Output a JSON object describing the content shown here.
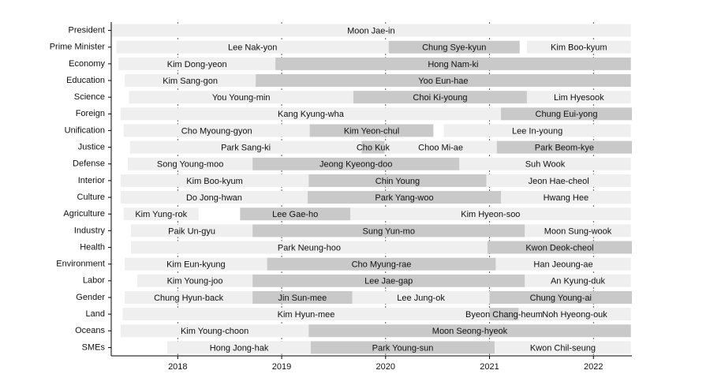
{
  "chart_data": {
    "type": "timeline",
    "colors": [
      "#efefef",
      "#c9c9c9"
    ],
    "xlim": [
      2017.36,
      2022.37
    ],
    "xticks": [
      2018,
      2019,
      2020,
      2021,
      2022
    ],
    "grid": true,
    "rows": [
      {
        "category": "President",
        "segments": [
          {
            "name": "Moon Jae-in",
            "start": 2017.36,
            "end": 2022.36
          }
        ]
      },
      {
        "category": "Prime Minister",
        "segments": [
          {
            "name": "Lee Nak-yon",
            "start": 2017.41,
            "end": 2020.03
          },
          {
            "name": "Chung Sye-kyun",
            "start": 2020.03,
            "end": 2021.29
          },
          {
            "name": "Kim Boo-kyum",
            "start": 2021.36,
            "end": 2022.36
          }
        ]
      },
      {
        "category": "Economy",
        "segments": [
          {
            "name": "Kim Dong-yeon",
            "start": 2017.43,
            "end": 2018.94
          },
          {
            "name": "Hong Nam-ki",
            "start": 2018.94,
            "end": 2022.36
          }
        ]
      },
      {
        "category": "Education",
        "segments": [
          {
            "name": "Kim Sang-gon",
            "start": 2017.49,
            "end": 2018.75
          },
          {
            "name": "Yoo Eun-hae",
            "start": 2018.75,
            "end": 2022.36
          }
        ]
      },
      {
        "category": "Science",
        "segments": [
          {
            "name": "You Young-min",
            "start": 2017.53,
            "end": 2019.69
          },
          {
            "name": "Choi Ki-young",
            "start": 2019.69,
            "end": 2021.36
          },
          {
            "name": "Lim Hyesook",
            "start": 2021.36,
            "end": 2022.36
          }
        ]
      },
      {
        "category": "Foreign",
        "segments": [
          {
            "name": "Kang Kyung-wha",
            "start": 2017.45,
            "end": 2021.11
          },
          {
            "name": "Chung Eui-yong",
            "start": 2021.11,
            "end": 2022.37
          }
        ]
      },
      {
        "category": "Unification",
        "segments": [
          {
            "name": "Cho Myoung-gyon",
            "start": 2017.48,
            "end": 2019.27
          },
          {
            "name": "Kim Yeon-chul",
            "start": 2019.27,
            "end": 2020.46
          },
          {
            "name": "Lee In-young",
            "start": 2020.56,
            "end": 2022.36
          }
        ]
      },
      {
        "category": "Justice",
        "segments": [
          {
            "name": "Park Sang-ki",
            "start": 2017.54,
            "end": 2019.77
          },
          {
            "name": "Cho Kuk",
            "start": 2019.77,
            "end": 2019.99
          },
          {
            "name": "Choo Mi-ae",
            "start": 2019.99,
            "end": 2021.07
          },
          {
            "name": "Park Beom-kye",
            "start": 2021.07,
            "end": 2022.37
          }
        ]
      },
      {
        "category": "Defense",
        "segments": [
          {
            "name": "Song Young-moo",
            "start": 2017.52,
            "end": 2018.72
          },
          {
            "name": "Jeong Kyeong-doo",
            "start": 2018.72,
            "end": 2020.71
          },
          {
            "name": "Suh Wook",
            "start": 2020.71,
            "end": 2022.36
          }
        ]
      },
      {
        "category": "Interior",
        "segments": [
          {
            "name": "Kim Boo-kyum",
            "start": 2017.45,
            "end": 2019.26
          },
          {
            "name": "Chin Young",
            "start": 2019.26,
            "end": 2020.97
          },
          {
            "name": "Jeon Hae-cheol",
            "start": 2020.97,
            "end": 2022.36
          }
        ]
      },
      {
        "category": "Culture",
        "segments": [
          {
            "name": "Do Jong-hwan",
            "start": 2017.45,
            "end": 2019.25
          },
          {
            "name": "Park Yang-woo",
            "start": 2019.25,
            "end": 2021.11
          },
          {
            "name": "Hwang Hee",
            "start": 2021.11,
            "end": 2022.36
          }
        ]
      },
      {
        "category": "Agriculture",
        "segments": [
          {
            "name": "Kim Yung-rok",
            "start": 2017.48,
            "end": 2018.2
          },
          {
            "name": "Lee Gae-ho",
            "start": 2018.6,
            "end": 2019.66
          },
          {
            "name": "Kim Hyeon-soo",
            "start": 2019.66,
            "end": 2022.36
          }
        ]
      },
      {
        "category": "Industry",
        "segments": [
          {
            "name": "Paik Un-gyu",
            "start": 2017.55,
            "end": 2018.72
          },
          {
            "name": "Sung Yun-mo",
            "start": 2018.72,
            "end": 2021.34
          },
          {
            "name": "Moon Sung-wook",
            "start": 2021.34,
            "end": 2022.36
          }
        ]
      },
      {
        "category": "Health",
        "segments": [
          {
            "name": "Park Neung-hoo",
            "start": 2017.55,
            "end": 2020.98
          },
          {
            "name": "Kwon Deok-cheol",
            "start": 2020.98,
            "end": 2022.37
          }
        ]
      },
      {
        "category": "Environment",
        "segments": [
          {
            "name": "Kim Eun-kyung",
            "start": 2017.49,
            "end": 2018.86
          },
          {
            "name": "Cho Myung-rae",
            "start": 2018.86,
            "end": 2021.06
          },
          {
            "name": "Han Jeoung-ae",
            "start": 2021.06,
            "end": 2022.36
          }
        ]
      },
      {
        "category": "Labor",
        "segments": [
          {
            "name": "Kim Young-joo",
            "start": 2017.61,
            "end": 2018.72
          },
          {
            "name": "Lee Jae-gap",
            "start": 2018.72,
            "end": 2021.34
          },
          {
            "name": "An Kyung-duk",
            "start": 2021.34,
            "end": 2022.36
          }
        ]
      },
      {
        "category": "Gender",
        "segments": [
          {
            "name": "Chung Hyun-back",
            "start": 2017.49,
            "end": 2018.72
          },
          {
            "name": "Jin Sun-mee",
            "start": 2018.72,
            "end": 2019.68
          },
          {
            "name": "Lee Jung-ok",
            "start": 2019.68,
            "end": 2021.0
          },
          {
            "name": "Chung Young-ai",
            "start": 2021.0,
            "end": 2022.37
          }
        ]
      },
      {
        "category": "Land",
        "segments": [
          {
            "name": "Kim Hyun-mee",
            "start": 2017.47,
            "end": 2021.0
          },
          {
            "name": "Byeon Chang-heum",
            "start": 2021.0,
            "end": 2021.28
          },
          {
            "name": "Noh Hyeong-ouk",
            "start": 2021.28,
            "end": 2022.36
          }
        ]
      },
      {
        "category": "Oceans",
        "segments": [
          {
            "name": "Kim Young-choon",
            "start": 2017.45,
            "end": 2019.26
          },
          {
            "name": "Moon Seong-hyeok",
            "start": 2019.26,
            "end": 2022.36
          }
        ]
      },
      {
        "category": "SMEs",
        "segments": [
          {
            "name": "Hong Jong-hak",
            "start": 2017.9,
            "end": 2019.28
          },
          {
            "name": "Park Young-sun",
            "start": 2019.28,
            "end": 2021.05
          },
          {
            "name": "Kwon Chil-seung",
            "start": 2021.05,
            "end": 2022.36
          }
        ]
      }
    ]
  }
}
